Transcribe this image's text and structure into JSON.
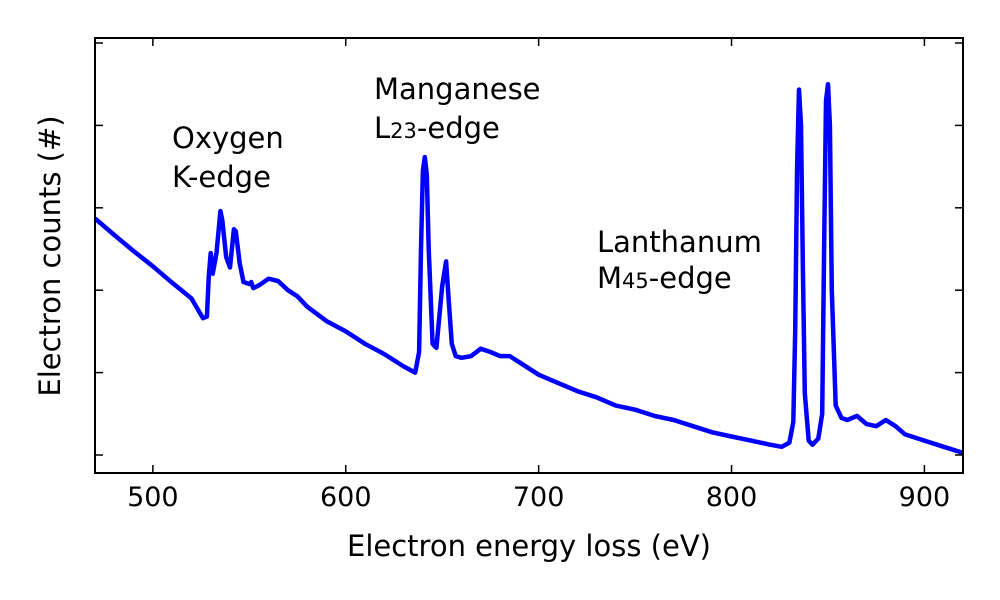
{
  "chart_data": {
    "type": "line",
    "title": "",
    "xlabel": "Electron energy loss (eV)",
    "ylabel": "Electron counts (#)",
    "xlim": [
      470,
      920
    ],
    "ylim": [
      0,
      1.0
    ],
    "x_ticks": [
      500,
      600,
      700,
      800,
      900
    ],
    "x_tick_labels": [
      "500",
      "600",
      "700",
      "800",
      "900"
    ],
    "y_tick_count": 6,
    "y_tick_labels_shown": false,
    "grid": false,
    "legend": "none",
    "series": [
      {
        "color": "#0000ff",
        "x": [
          470,
          480,
          490,
          500,
          510,
          520,
          526,
          528,
          529,
          530,
          531,
          533,
          535,
          536,
          538,
          540,
          542,
          543,
          545,
          547,
          550,
          551,
          552,
          555,
          560,
          565,
          570,
          575,
          580,
          590,
          600,
          610,
          620,
          630,
          636,
          638,
          639,
          640,
          641,
          642,
          643,
          645,
          647,
          650,
          652,
          653,
          655,
          657,
          660,
          665,
          670,
          675,
          680,
          685,
          690,
          700,
          710,
          720,
          730,
          740,
          750,
          760,
          770,
          780,
          790,
          800,
          810,
          820,
          826,
          830,
          832,
          833,
          834,
          835,
          836,
          837,
          838,
          840,
          842,
          845,
          847,
          848,
          849,
          850,
          851,
          852,
          854,
          857,
          860,
          865,
          870,
          875,
          880,
          885,
          890,
          900,
          910,
          920
        ],
        "y": [
          0.574,
          0.534,
          0.495,
          0.458,
          0.418,
          0.38,
          0.332,
          0.336,
          0.435,
          0.49,
          0.44,
          0.49,
          0.592,
          0.57,
          0.48,
          0.455,
          0.548,
          0.543,
          0.465,
          0.42,
          0.415,
          0.42,
          0.405,
          0.412,
          0.428,
          0.422,
          0.4,
          0.385,
          0.36,
          0.325,
          0.3,
          0.27,
          0.245,
          0.215,
          0.2,
          0.25,
          0.5,
          0.69,
          0.723,
          0.68,
          0.5,
          0.27,
          0.26,
          0.41,
          0.47,
          0.4,
          0.27,
          0.24,
          0.236,
          0.24,
          0.258,
          0.25,
          0.24,
          0.24,
          0.225,
          0.195,
          0.175,
          0.155,
          0.14,
          0.12,
          0.11,
          0.095,
          0.085,
          0.07,
          0.055,
          0.045,
          0.035,
          0.025,
          0.02,
          0.03,
          0.08,
          0.3,
          0.7,
          0.887,
          0.8,
          0.45,
          0.15,
          0.035,
          0.025,
          0.04,
          0.1,
          0.5,
          0.86,
          0.9,
          0.8,
          0.4,
          0.12,
          0.09,
          0.085,
          0.095,
          0.075,
          0.07,
          0.085,
          0.07,
          0.05,
          0.035,
          0.02,
          0.005
        ]
      }
    ],
    "annotations": [
      {
        "line1": "Oxygen",
        "line2": "K-edge"
      },
      {
        "line1": "Manganese",
        "line2_main": "L",
        "line2_sub": "23",
        "line2_tail": "-edge"
      },
      {
        "line1": "Lanthanum",
        "line2_main": "M",
        "line2_sub": "45",
        "line2_tail": "-edge"
      }
    ]
  }
}
